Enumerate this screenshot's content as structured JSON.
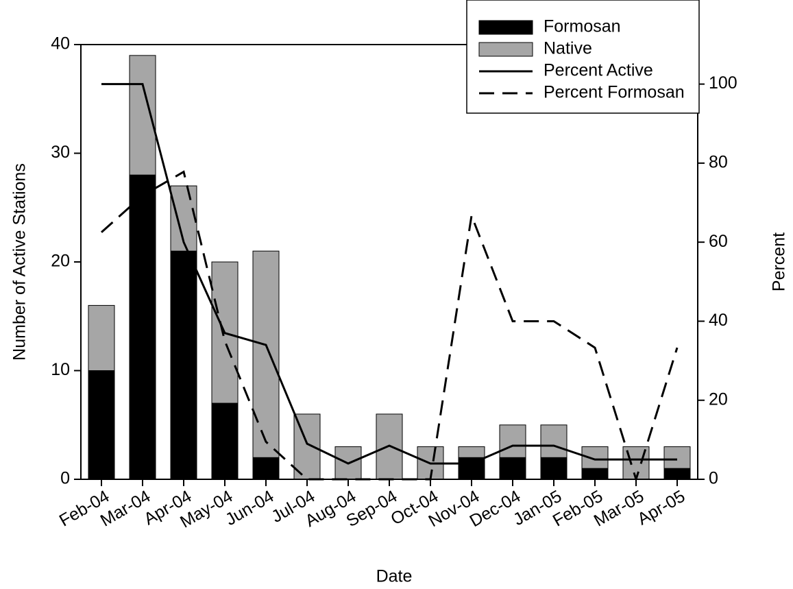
{
  "chart_data": {
    "type": "bar",
    "stacked": true,
    "categories": [
      "Feb-04",
      "Mar-04",
      "Apr-04",
      "May-04",
      "Jun-04",
      "Jul-04",
      "Aug-04",
      "Sep-04",
      "Oct-04",
      "Nov-04",
      "Dec-04",
      "Jan-05",
      "Feb-05",
      "Mar-05",
      "Apr-05"
    ],
    "series": [
      {
        "name": "Formosan",
        "type": "bar",
        "color": "#000000",
        "values": [
          10,
          28,
          21,
          7,
          2,
          0,
          0,
          0,
          0,
          2,
          2,
          2,
          1,
          0,
          1
        ]
      },
      {
        "name": "Native",
        "type": "bar",
        "color": "#a6a6a6",
        "values": [
          6,
          11,
          6,
          13,
          19,
          6,
          3,
          6,
          3,
          1,
          3,
          3,
          2,
          3,
          2
        ]
      },
      {
        "name": "Percent Active",
        "type": "line",
        "axis": "y2",
        "dash": "solid",
        "color": "#000000",
        "values": [
          100,
          100,
          60,
          37,
          34,
          9,
          4,
          8.5,
          4,
          4,
          8.5,
          8.5,
          5,
          5,
          5
        ]
      },
      {
        "name": "Percent Formosan",
        "type": "line",
        "axis": "y2",
        "dash": "dashed",
        "color": "#000000",
        "values": [
          62.5,
          71.8,
          77.8,
          35,
          9.5,
          0,
          0,
          0,
          0,
          66.7,
          40,
          40,
          33.3,
          0,
          33.3
        ]
      }
    ],
    "x_label": "Date",
    "y_label": "Number of Active Stations",
    "y2_label": "Percent",
    "ylim": [
      0,
      40
    ],
    "yticks": [
      0,
      10,
      20,
      30,
      40
    ],
    "y2lim": [
      0,
      110
    ],
    "y2ticks": [
      0,
      20,
      40,
      60,
      80,
      100
    ],
    "legend": "upper right"
  }
}
